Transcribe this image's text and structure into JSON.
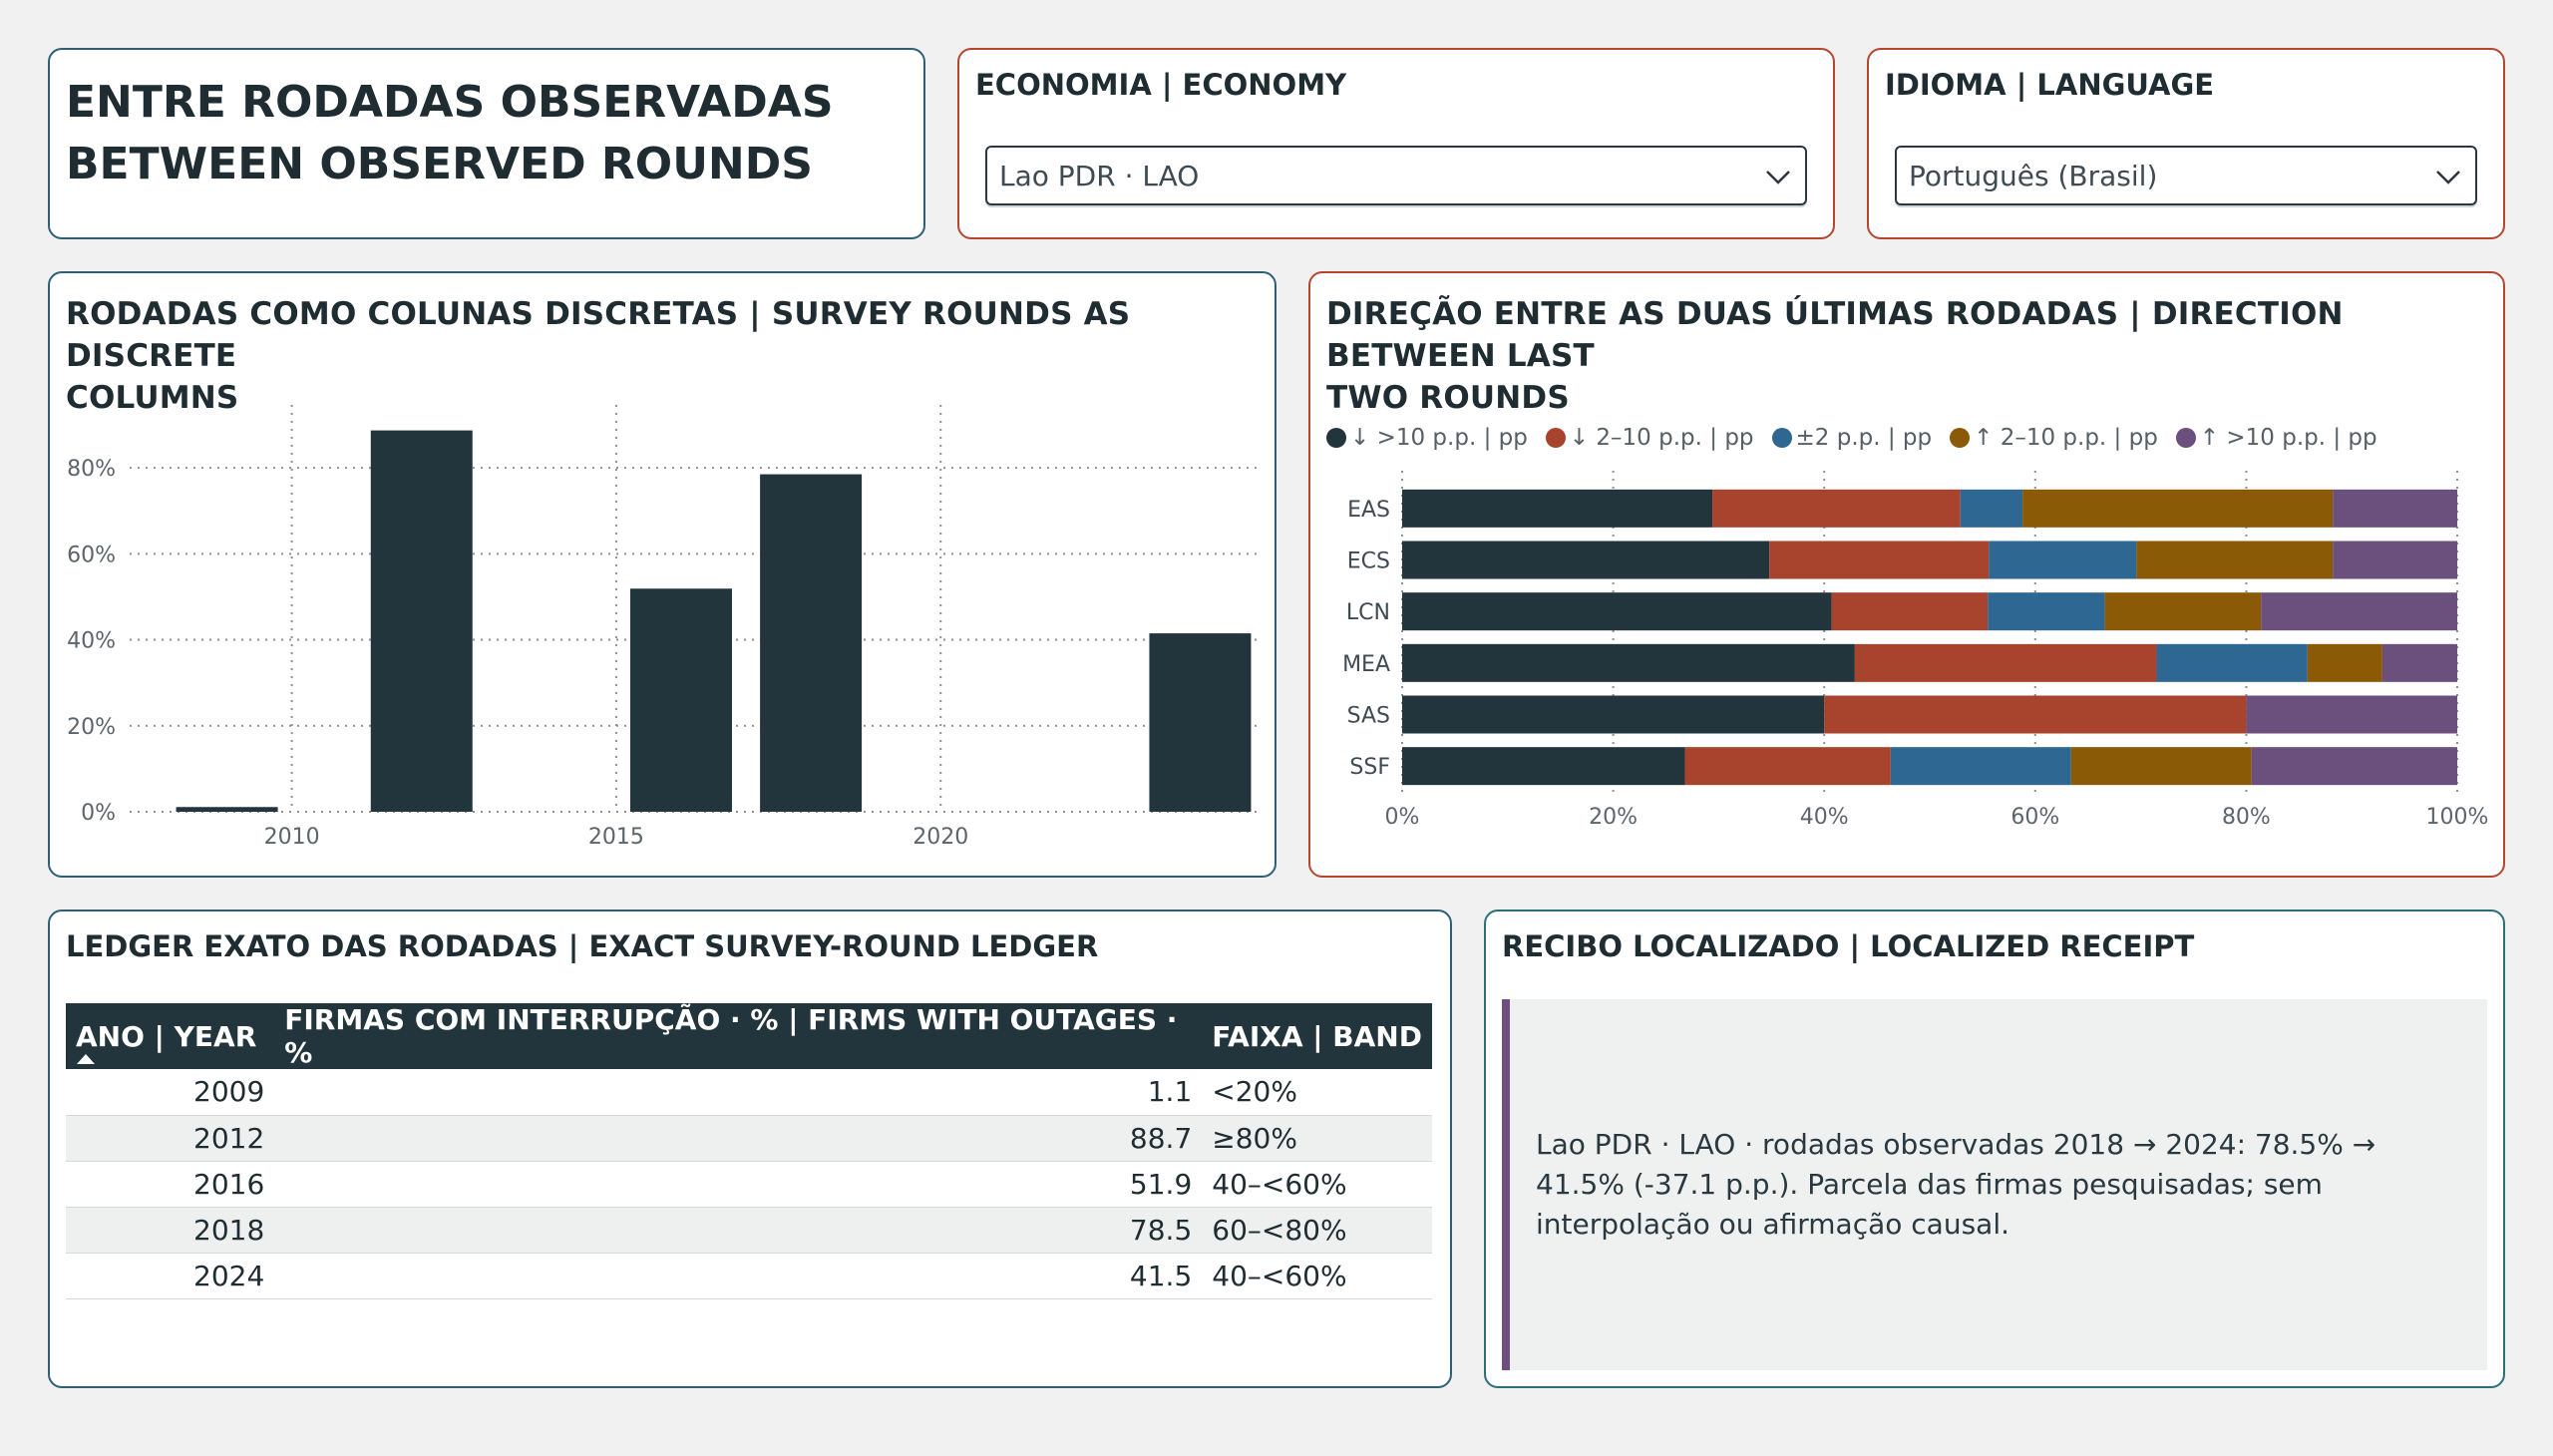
{
  "header": {
    "title_line1": "ENTRE RODADAS OBSERVADAS",
    "title_line2": "BETWEEN OBSERVED ROUNDS"
  },
  "economy": {
    "label": "ECONOMIA | ECONOMY",
    "selected": "Lao PDR · LAO"
  },
  "language": {
    "label": "IDIOMA | LANGUAGE",
    "selected": "Português (Brasil)"
  },
  "rounds_chart": {
    "title_line1": "RODADAS COMO COLUNAS DISCRETAS | SURVEY ROUNDS AS DISCRETE",
    "title_line2": "COLUMNS"
  },
  "direction_chart": {
    "title_line1": "DIREÇÃO ENTRE AS DUAS ÚLTIMAS RODADAS | DIRECTION BETWEEN LAST",
    "title_line2": "TWO ROUNDS",
    "legend": [
      {
        "label": "↓ >10 p.p. | pp",
        "color": "#22353c"
      },
      {
        "label": "↓ 2–10 p.p. | pp",
        "color": "#a8432e"
      },
      {
        "label": "±2 p.p. | pp",
        "color": "#2e6791"
      },
      {
        "label": "↑ 2–10 p.p. | pp",
        "color": "#8a5a06"
      },
      {
        "label": "↑ >10 p.p. | pp",
        "color": "#6b4f7c"
      }
    ]
  },
  "chart_data": [
    {
      "type": "bar",
      "x": [
        2009,
        2012,
        2016,
        2018,
        2024
      ],
      "values": [
        1.1,
        88.7,
        51.9,
        78.5,
        41.5
      ],
      "xticks": [
        "2010",
        "2015",
        "2020"
      ],
      "yticks": [
        "0%",
        "20%",
        "40%",
        "60%",
        "80%"
      ],
      "ylim": [
        0,
        90
      ],
      "xlim": [
        2007.5,
        2024.9
      ],
      "color": "#22353c",
      "grid": true
    },
    {
      "type": "bar",
      "orientation": "horizontal",
      "stacked": true,
      "categories": [
        "EAS",
        "ECS",
        "LCN",
        "MEA",
        "SAS",
        "SSF"
      ],
      "xticks": [
        "0%",
        "20%",
        "40%",
        "60%",
        "80%",
        "100%"
      ],
      "xlim": [
        0,
        100
      ],
      "series": [
        {
          "name": "↓ >10 p.p. | pp",
          "values": [
            29.4,
            34.8,
            40.7,
            42.9,
            40.0,
            26.8
          ],
          "color": "#22353c"
        },
        {
          "name": "↓ 2–10 p.p. | pp",
          "values": [
            23.5,
            20.8,
            14.8,
            28.6,
            40.0,
            19.5
          ],
          "color": "#a8432e"
        },
        {
          "name": "±2 p.p. | pp",
          "values": [
            5.9,
            14.0,
            11.1,
            14.3,
            0,
            17.1
          ],
          "color": "#2e6791"
        },
        {
          "name": "↑ 2–10 p.p. | pp",
          "values": [
            29.4,
            18.6,
            14.8,
            7.1,
            0,
            17.1
          ],
          "color": "#8a5a06"
        },
        {
          "name": "↑ >10 p.p. | pp",
          "values": [
            11.8,
            11.8,
            18.6,
            7.1,
            20.0,
            19.5
          ],
          "color": "#6b4f7c"
        }
      ]
    }
  ],
  "ledger": {
    "title": "LEDGER EXATO DAS RODADAS | EXACT SURVEY-ROUND LEDGER",
    "columns": [
      "ANO | YEAR",
      "FIRMAS COM INTERRUPÇÃO · % | FIRMS WITH OUTAGES · %",
      "FAIXA | BAND"
    ],
    "rows": [
      {
        "year": "2009",
        "value": "1.1",
        "band": "<20%"
      },
      {
        "year": "2012",
        "value": "88.7",
        "band": "≥80%"
      },
      {
        "year": "2016",
        "value": "51.9",
        "band": "40–<60%"
      },
      {
        "year": "2018",
        "value": "78.5",
        "band": "60–<80%"
      },
      {
        "year": "2024",
        "value": "41.5",
        "band": "40–<60%"
      }
    ]
  },
  "receipt": {
    "title": "RECIBO LOCALIZADO | LOCALIZED RECEIPT",
    "text": "Lao PDR · LAO · rodadas observadas 2018 → 2024: 78.5% → 41.5% (-37.1 p.p.). Parcela das firmas pesquisadas; sem interpolação ou afirmação causal."
  }
}
